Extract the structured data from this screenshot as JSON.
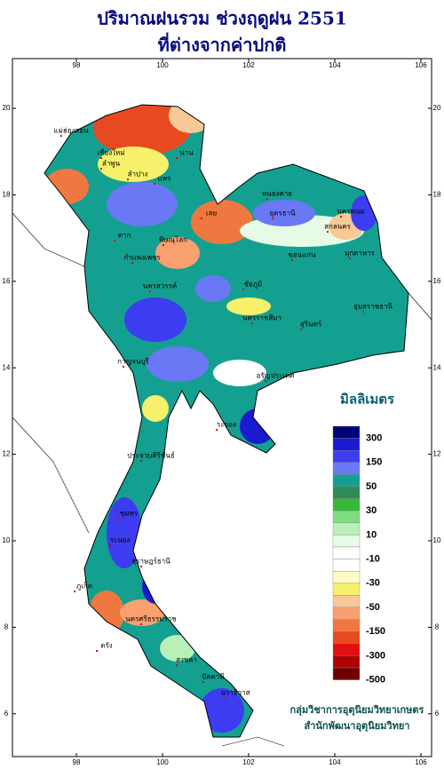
{
  "title": [
    "ปริมาณฝนรวม ช่วงฤดูฝน 2551",
    "ที่ต่างจากค่าปกติ"
  ],
  "map": {
    "xticks": [
      98,
      100,
      102,
      104,
      106
    ],
    "yticks": [
      6,
      8,
      10,
      12,
      14,
      16,
      18,
      20
    ],
    "places": [
      "แม่ฮ่องสอน",
      "เชียงใหม่",
      "ลำพูน",
      "น่าน",
      "ลำปาง",
      "แพร่",
      "ตาก",
      "พิษณุโลก",
      "กำแพงเพชร",
      "เลย",
      "หนองคาย",
      "อุดรธานี",
      "นครพนม",
      "สกลนคร",
      "มุกดาหาร",
      "ขอนแก่น",
      "ชัยภูมิ",
      "นครราชสีมา",
      "อุบลราชธานี",
      "สุรินทร์",
      "นครสวรรค์",
      "กาญจนบุรี",
      "อรัญประเทศ",
      "ระยอง",
      "ประจวบคีรีขันธ์",
      "ชุมพร",
      "ระนอง",
      "สุราษฎร์ธานี",
      "ภูเก็ต",
      "นครศรีธรรมราช",
      "ตรัง",
      "สงขลา",
      "ปัตตานี",
      "นราธิวาส"
    ]
  },
  "legend": {
    "title": "มิลลิเมตร",
    "colors": [
      "#00007a",
      "#1a1ad0",
      "#3c3cf0",
      "#6a78f5",
      "#14a090",
      "#2e8b57",
      "#38b838",
      "#7fdc7f",
      "#b8f0b8",
      "#e6fbe6",
      "#ffffff",
      "#ffffff",
      "#fffbc0",
      "#f7f06a",
      "#f8c896",
      "#f8a070",
      "#f07840",
      "#e84a20",
      "#e01010",
      "#b00000",
      "#700000"
    ],
    "labels": [
      300,
      150,
      50,
      30,
      10,
      -10,
      -30,
      -50,
      -150,
      -300,
      -500
    ]
  },
  "credits": [
    "กลุ่มวิชาการอุตุนิยมวิทยาเกษตร",
    "สำนักพัฒนาอุตุนิยมวิทยา"
  ]
}
